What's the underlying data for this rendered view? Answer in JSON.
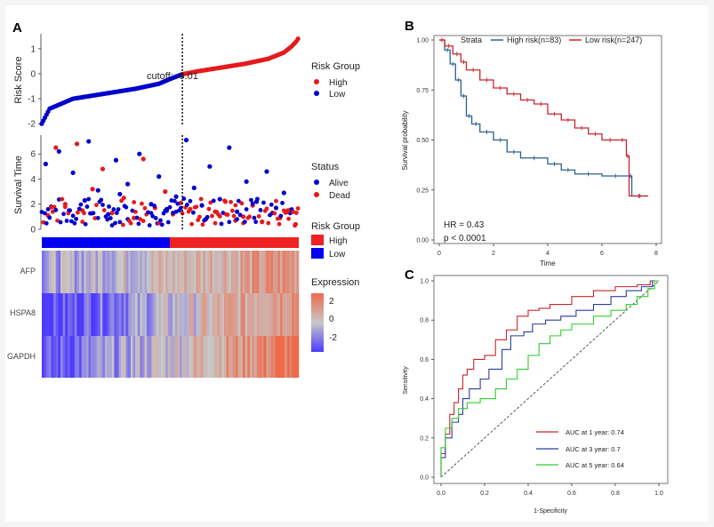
{
  "panels": {
    "A": {
      "label": "A",
      "risk_score": {
        "ylabel": "Risk Score",
        "yticks": [
          "1",
          "0",
          "-1",
          "-2"
        ],
        "cutoff_label": "cutoff: -0.01",
        "legend": {
          "title": "Risk Group",
          "items": [
            "High",
            "Low"
          ]
        }
      },
      "survival_time": {
        "ylabel": "Survival Time",
        "yticks": [
          "6",
          "4",
          "2",
          "0"
        ],
        "legend": {
          "title": "Status",
          "items": [
            "Alive",
            "Dead"
          ]
        }
      },
      "group_bar": {
        "legend": {
          "title": "Risk Group",
          "items": [
            "High",
            "Low"
          ]
        }
      },
      "heatmap": {
        "genes": [
          "AFP",
          "HSPA8",
          "GAPDH"
        ],
        "legend": {
          "title": "Expression",
          "ticks": [
            "2",
            "0",
            "-2"
          ]
        }
      }
    },
    "B": {
      "label": "B",
      "strata_title": "Strata",
      "series_labels": [
        "High risk(n=83)",
        "Low risk(n=247)"
      ],
      "ylabel": "Survival probability",
      "xlabel": "Time",
      "yticks": [
        "1.00",
        "0.75",
        "0.50",
        "0.25",
        "0.00"
      ],
      "xticks": [
        "0",
        "2",
        "4",
        "6",
        "8"
      ],
      "hr": "HR = 0.43",
      "pvalue": "p < 0.0001"
    },
    "C": {
      "label": "C",
      "ylabel": "Sensitivity",
      "xlabel": "1-Specificity",
      "yticks": [
        "1.0",
        "0.8",
        "0.6",
        "0.4",
        "0.2",
        "0.0"
      ],
      "xticks": [
        "0.0",
        "0.2",
        "0.4",
        "0.6",
        "0.8",
        "1.0"
      ],
      "legend": [
        "AUC at 1 year: 0.74",
        "AUC at 3 year: 0.7",
        "AUC at 5 year: 0.64"
      ]
    }
  },
  "colors": {
    "high": "#e41a1c",
    "low": "#0000cc",
    "km_high": "#2c5f8f",
    "km_low": "#c8262b",
    "roc_1": "#c8262b",
    "roc_3": "#2c3e9f",
    "roc_5": "#33cc33",
    "heat_high": "#ee6a4a",
    "heat_mid": "#c8c8c8",
    "heat_low": "#4c3aff"
  },
  "chart_data": [
    {
      "type": "scatter",
      "title": "",
      "ylabel": "Risk Score",
      "ylim": [
        -2.1,
        1.6
      ],
      "n": 330,
      "cutoff": -0.01,
      "x": [
        0,
        10,
        40,
        80,
        120,
        150,
        165,
        180,
        200,
        230,
        260,
        290,
        310,
        320,
        326,
        329
      ],
      "y": [
        -2.0,
        -1.4,
        -1.0,
        -0.8,
        -0.6,
        -0.4,
        -0.2,
        -0.02,
        0.1,
        0.25,
        0.4,
        0.6,
        0.85,
        1.1,
        1.3,
        1.45
      ]
    },
    {
      "type": "scatter",
      "title": "",
      "ylabel": "Survival Time",
      "ylim": [
        0,
        7.5
      ],
      "series": [
        {
          "name": "Alive",
          "x": [
            5,
            12,
            22,
            35,
            40,
            55,
            60,
            72,
            85,
            95,
            100,
            110,
            125,
            140,
            150,
            160,
            172,
            185,
            195,
            205,
            215,
            228,
            240,
            250,
            262,
            275,
            288,
            300,
            310,
            318
          ],
          "y": [
            5.2,
            1.8,
            6.2,
            1.5,
            4.5,
            2.3,
            7.0,
            3.1,
            1.2,
            5.5,
            2.8,
            3.6,
            6.0,
            2.0,
            4.2,
            1.6,
            2.6,
            7.1,
            3.3,
            1.9,
            5.0,
            2.4,
            6.5,
            1.4,
            3.8,
            2.2,
            4.6,
            1.7,
            2.9,
            1.3
          ]
        },
        {
          "name": "Dead",
          "x": [
            8,
            18,
            30,
            45,
            52,
            65,
            78,
            90,
            105,
            118,
            130,
            145,
            158,
            168,
            178,
            190,
            210,
            222,
            235,
            248,
            258,
            270,
            282,
            295,
            305,
            315,
            325
          ],
          "y": [
            1.1,
            6.5,
            2.0,
            6.8,
            1.5,
            3.2,
            4.8,
            1.3,
            2.5,
            0.9,
            5.6,
            1.7,
            3.0,
            1.2,
            2.1,
            1.6,
            0.8,
            1.4,
            2.2,
            0.7,
            1.0,
            1.9,
            0.6,
            1.3,
            0.9,
            1.5,
            0.4
          ]
        }
      ]
    },
    {
      "type": "heatmap",
      "title": "",
      "rows": [
        "AFP",
        "HSPA8",
        "GAPDH"
      ],
      "columns": 330,
      "value_range": [
        -2,
        2
      ],
      "row_trend_start": [
        -0.6,
        -2.0,
        -1.8
      ],
      "row_trend_end": [
        1.2,
        1.5,
        1.9
      ]
    },
    {
      "type": "line",
      "title": "",
      "xlabel": "Time",
      "ylabel": "Survival probability",
      "xlim": [
        0,
        8
      ],
      "ylim": [
        0,
        1
      ],
      "series": [
        {
          "name": "High risk(n=83)",
          "x": [
            0,
            0.2,
            0.4,
            0.6,
            0.8,
            1.0,
            1.2,
            1.5,
            2.0,
            2.5,
            3.0,
            4.0,
            4.5,
            5.0,
            6.0,
            7.0,
            7.1,
            7.7
          ],
          "y": [
            1.0,
            0.95,
            0.88,
            0.8,
            0.72,
            0.62,
            0.58,
            0.54,
            0.5,
            0.44,
            0.41,
            0.38,
            0.35,
            0.33,
            0.32,
            0.32,
            0.22,
            0.22
          ]
        },
        {
          "name": "Low risk(n=247)",
          "x": [
            0,
            0.2,
            0.5,
            0.8,
            1.0,
            1.5,
            2.0,
            2.5,
            3.0,
            3.5,
            4.0,
            4.5,
            5.0,
            5.5,
            6.0,
            6.6,
            6.9,
            7.0,
            7.7
          ],
          "y": [
            1.0,
            0.97,
            0.93,
            0.89,
            0.85,
            0.8,
            0.76,
            0.73,
            0.7,
            0.68,
            0.63,
            0.6,
            0.56,
            0.53,
            0.5,
            0.5,
            0.42,
            0.22,
            0.22
          ]
        }
      ]
    },
    {
      "type": "line",
      "title": "",
      "xlabel": "1-Specificity",
      "ylabel": "Sensitivity",
      "xlim": [
        0,
        1
      ],
      "ylim": [
        0,
        1
      ],
      "series": [
        {
          "name": "AUC at 1 year: 0.74",
          "x": [
            0,
            0.02,
            0.04,
            0.06,
            0.08,
            0.1,
            0.12,
            0.15,
            0.2,
            0.25,
            0.3,
            0.35,
            0.4,
            0.45,
            0.5,
            0.6,
            0.7,
            0.8,
            0.9,
            0.96,
            1.0
          ],
          "y": [
            0,
            0.12,
            0.22,
            0.32,
            0.38,
            0.45,
            0.52,
            0.55,
            0.6,
            0.62,
            0.7,
            0.75,
            0.82,
            0.85,
            0.86,
            0.88,
            0.92,
            0.95,
            0.97,
            0.98,
            1.0
          ]
        },
        {
          "name": "AUC at 3 year: 0.7",
          "x": [
            0,
            0.02,
            0.05,
            0.08,
            0.1,
            0.13,
            0.18,
            0.22,
            0.28,
            0.32,
            0.38,
            0.42,
            0.48,
            0.55,
            0.62,
            0.7,
            0.78,
            0.85,
            0.92,
            0.97,
            1.0
          ],
          "y": [
            0,
            0.1,
            0.2,
            0.28,
            0.32,
            0.4,
            0.45,
            0.5,
            0.55,
            0.65,
            0.72,
            0.74,
            0.78,
            0.8,
            0.82,
            0.85,
            0.88,
            0.92,
            0.95,
            0.97,
            1.0
          ]
        },
        {
          "name": "AUC at 5 year: 0.64",
          "x": [
            0,
            0.02,
            0.05,
            0.08,
            0.12,
            0.18,
            0.25,
            0.3,
            0.35,
            0.4,
            0.45,
            0.5,
            0.55,
            0.6,
            0.7,
            0.78,
            0.85,
            0.9,
            0.95,
            0.98,
            1.0
          ],
          "y": [
            0,
            0.15,
            0.25,
            0.3,
            0.35,
            0.38,
            0.4,
            0.45,
            0.5,
            0.55,
            0.62,
            0.68,
            0.72,
            0.75,
            0.78,
            0.82,
            0.85,
            0.88,
            0.92,
            0.96,
            1.0
          ]
        }
      ]
    }
  ]
}
